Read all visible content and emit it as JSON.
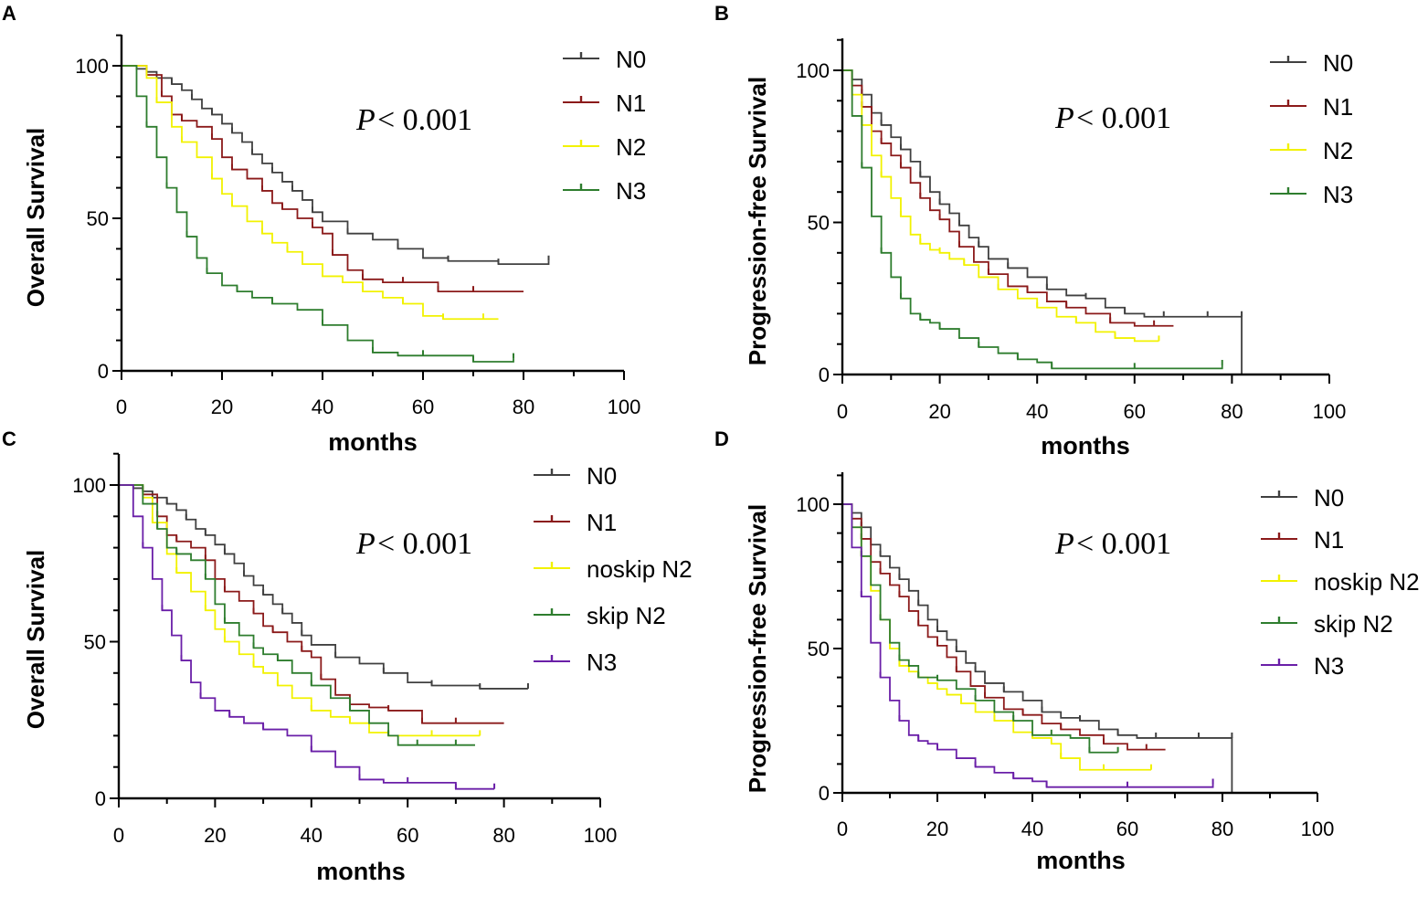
{
  "chart_data": [
    {
      "type": "line",
      "panel_label": "A",
      "ylabel": "Overall Survival",
      "xlabel": "months",
      "xlim": [
        0,
        100
      ],
      "ylim": [
        0,
        100
      ],
      "xticks": [
        "0",
        "20",
        "40",
        "60",
        "80",
        "100"
      ],
      "yticks": [
        "0",
        "50",
        "100"
      ],
      "pvalue": "< 0.001",
      "series": [
        {
          "name": "N0",
          "color": "#404040",
          "x": [
            0,
            3,
            5,
            7,
            10,
            12,
            14,
            16,
            18,
            20,
            22,
            24,
            26,
            28,
            30,
            32,
            34,
            36,
            38,
            40,
            45,
            50,
            55,
            60,
            65,
            70,
            75,
            80,
            85
          ],
          "y": [
            100,
            99,
            98,
            96,
            94,
            92,
            89,
            86,
            84,
            81,
            78,
            75,
            71,
            68,
            65,
            62,
            59,
            56,
            52,
            49,
            45,
            43,
            40,
            37,
            36,
            36,
            35,
            35,
            36
          ]
        },
        {
          "name": "N1",
          "color": "#8b1a1a",
          "x": [
            0,
            5,
            8,
            10,
            12,
            15,
            18,
            20,
            22,
            25,
            28,
            30,
            32,
            35,
            38,
            40,
            42,
            45,
            48,
            52,
            56,
            60,
            63,
            66,
            70,
            80
          ],
          "y": [
            100,
            97,
            90,
            84,
            82,
            80,
            76,
            70,
            66,
            63,
            59,
            55,
            53,
            50,
            47,
            45,
            38,
            33,
            30,
            29,
            29,
            29,
            26,
            26,
            26,
            26
          ]
        },
        {
          "name": "N2",
          "color": "#f2f200",
          "x": [
            0,
            5,
            7,
            10,
            12,
            15,
            18,
            20,
            22,
            25,
            28,
            30,
            33,
            36,
            40,
            44,
            48,
            52,
            56,
            60,
            64,
            68,
            72,
            75
          ],
          "y": [
            100,
            96,
            88,
            80,
            75,
            70,
            63,
            58,
            54,
            49,
            45,
            42,
            39,
            35,
            31,
            29,
            26,
            24,
            22,
            18,
            17,
            17,
            17,
            17
          ]
        },
        {
          "name": "N3",
          "color": "#2e7d2e",
          "x": [
            0,
            3,
            5,
            7,
            9,
            11,
            13,
            15,
            17,
            20,
            23,
            26,
            30,
            35,
            40,
            45,
            50,
            55,
            60,
            65,
            70,
            75,
            78
          ],
          "y": [
            100,
            90,
            80,
            70,
            60,
            52,
            44,
            37,
            32,
            28,
            26,
            24,
            22,
            20,
            15,
            10,
            6,
            5,
            5,
            5,
            3,
            3,
            4
          ]
        }
      ]
    },
    {
      "type": "line",
      "panel_label": "B",
      "ylabel": "Progression-free Survival",
      "xlabel": "months",
      "xlim": [
        0,
        100
      ],
      "ylim": [
        0,
        100
      ],
      "xticks": [
        "0",
        "20",
        "40",
        "60",
        "80",
        "100"
      ],
      "yticks": [
        "0",
        "50",
        "100"
      ],
      "pvalue": "< 0.001",
      "series": [
        {
          "name": "N0",
          "color": "#404040",
          "x": [
            0,
            2,
            4,
            6,
            8,
            10,
            12,
            14,
            16,
            18,
            20,
            22,
            24,
            26,
            28,
            30,
            34,
            38,
            42,
            46,
            50,
            54,
            58,
            62,
            66,
            70,
            75,
            80,
            82,
            82
          ],
          "y": [
            100,
            97,
            92,
            86,
            82,
            78,
            74,
            70,
            65,
            60,
            56,
            53,
            49,
            45,
            42,
            38,
            35,
            32,
            28,
            26,
            25,
            22,
            20,
            19,
            19,
            19,
            19,
            19,
            19,
            0
          ]
        },
        {
          "name": "N1",
          "color": "#8b1a1a",
          "x": [
            0,
            2,
            4,
            6,
            8,
            10,
            12,
            14,
            16,
            18,
            20,
            22,
            24,
            27,
            30,
            34,
            38,
            42,
            46,
            50,
            55,
            60,
            64,
            68
          ],
          "y": [
            100,
            95,
            88,
            80,
            76,
            72,
            68,
            63,
            58,
            54,
            51,
            47,
            42,
            37,
            33,
            29,
            27,
            24,
            22,
            20,
            17,
            16,
            16,
            16
          ]
        },
        {
          "name": "N2",
          "color": "#f2f200",
          "x": [
            0,
            2,
            4,
            6,
            8,
            10,
            12,
            14,
            16,
            18,
            20,
            22,
            25,
            28,
            32,
            36,
            40,
            44,
            48,
            52,
            56,
            60,
            65
          ],
          "y": [
            100,
            92,
            82,
            72,
            65,
            58,
            52,
            46,
            43,
            41,
            40,
            38,
            36,
            32,
            28,
            25,
            22,
            19,
            17,
            14,
            12,
            11,
            11
          ]
        },
        {
          "name": "N3",
          "color": "#2e7d2e",
          "x": [
            0,
            2,
            4,
            6,
            8,
            10,
            12,
            14,
            16,
            18,
            20,
            24,
            28,
            32,
            36,
            40,
            43,
            50,
            60,
            70,
            78
          ],
          "y": [
            100,
            85,
            68,
            52,
            40,
            32,
            25,
            20,
            18,
            17,
            15,
            12,
            9,
            7,
            5,
            4,
            2,
            2,
            2,
            2,
            3
          ]
        }
      ]
    },
    {
      "type": "line",
      "panel_label": "C",
      "ylabel": "Overall Survival",
      "xlabel": "months",
      "xlim": [
        0,
        100
      ],
      "ylim": [
        0,
        100
      ],
      "xticks": [
        "0",
        "20",
        "40",
        "60",
        "80",
        "100"
      ],
      "yticks": [
        "0",
        "50",
        "100"
      ],
      "pvalue": "< 0.001",
      "series": [
        {
          "name": "N0",
          "color": "#404040",
          "x": [
            0,
            3,
            5,
            7,
            10,
            12,
            14,
            16,
            18,
            20,
            22,
            24,
            26,
            28,
            30,
            32,
            34,
            36,
            38,
            40,
            45,
            50,
            55,
            60,
            65,
            70,
            75,
            80,
            85
          ],
          "y": [
            100,
            99,
            98,
            96,
            94,
            92,
            89,
            86,
            84,
            81,
            78,
            75,
            71,
            68,
            65,
            62,
            59,
            56,
            52,
            49,
            45,
            43,
            40,
            37,
            36,
            36,
            35,
            35,
            35
          ]
        },
        {
          "name": "N1",
          "color": "#8b1a1a",
          "x": [
            0,
            5,
            8,
            10,
            12,
            15,
            18,
            20,
            22,
            25,
            28,
            30,
            32,
            35,
            38,
            40,
            42,
            45,
            48,
            52,
            56,
            60,
            63,
            66,
            70,
            80
          ],
          "y": [
            100,
            97,
            90,
            84,
            82,
            80,
            76,
            70,
            66,
            63,
            59,
            55,
            53,
            50,
            47,
            45,
            38,
            33,
            30,
            29,
            28,
            28,
            24,
            24,
            24,
            24
          ]
        },
        {
          "name": "noskip N2",
          "color": "#f2f200",
          "x": [
            0,
            5,
            7,
            10,
            12,
            15,
            18,
            20,
            22,
            25,
            28,
            30,
            33,
            36,
            40,
            44,
            48,
            52,
            56,
            60,
            65,
            70,
            75
          ],
          "y": [
            100,
            96,
            88,
            78,
            72,
            66,
            60,
            54,
            50,
            46,
            42,
            40,
            36,
            32,
            28,
            26,
            24,
            21,
            20,
            20,
            20,
            20,
            20
          ]
        },
        {
          "name": "skip N2",
          "color": "#2e7d2e",
          "x": [
            0,
            5,
            8,
            10,
            12,
            15,
            18,
            20,
            22,
            25,
            28,
            30,
            33,
            36,
            40,
            44,
            48,
            52,
            56,
            58,
            62,
            66,
            70,
            74
          ],
          "y": [
            100,
            94,
            86,
            80,
            78,
            76,
            70,
            62,
            56,
            52,
            48,
            46,
            44,
            40,
            36,
            32,
            28,
            24,
            20,
            17,
            17,
            17,
            17,
            17
          ]
        },
        {
          "name": "N3",
          "color": "#6a1fa8",
          "x": [
            0,
            3,
            5,
            7,
            9,
            11,
            13,
            15,
            17,
            20,
            23,
            26,
            30,
            35,
            40,
            45,
            50,
            55,
            60,
            65,
            70,
            75,
            78
          ],
          "y": [
            100,
            90,
            80,
            70,
            60,
            52,
            44,
            37,
            32,
            28,
            26,
            24,
            22,
            20,
            15,
            10,
            6,
            5,
            5,
            5,
            3,
            3,
            3
          ]
        }
      ]
    },
    {
      "type": "line",
      "panel_label": "D",
      "ylabel": "Progression-free Survival",
      "xlabel": "months",
      "xlim": [
        0,
        100
      ],
      "ylim": [
        0,
        100
      ],
      "xticks": [
        "0",
        "20",
        "40",
        "60",
        "80",
        "100"
      ],
      "yticks": [
        "0",
        "50",
        "100"
      ],
      "pvalue": "< 0.001",
      "series": [
        {
          "name": "N0",
          "color": "#404040",
          "x": [
            0,
            2,
            4,
            6,
            8,
            10,
            12,
            14,
            16,
            18,
            20,
            22,
            24,
            26,
            28,
            30,
            34,
            38,
            42,
            46,
            50,
            54,
            58,
            62,
            66,
            70,
            75,
            80,
            82,
            82
          ],
          "y": [
            100,
            97,
            92,
            86,
            82,
            78,
            74,
            70,
            65,
            60,
            56,
            53,
            49,
            45,
            42,
            38,
            35,
            32,
            28,
            26,
            25,
            22,
            20,
            19,
            19,
            19,
            19,
            19,
            19,
            0
          ]
        },
        {
          "name": "N1",
          "color": "#8b1a1a",
          "x": [
            0,
            2,
            4,
            6,
            8,
            10,
            12,
            14,
            16,
            18,
            20,
            22,
            24,
            27,
            30,
            34,
            38,
            42,
            46,
            50,
            55,
            60,
            64,
            68
          ],
          "y": [
            100,
            95,
            88,
            80,
            76,
            72,
            68,
            63,
            58,
            54,
            51,
            47,
            42,
            37,
            33,
            29,
            27,
            24,
            22,
            20,
            17,
            15,
            15,
            15
          ]
        },
        {
          "name": "noskip N2",
          "color": "#f2f200",
          "x": [
            0,
            2,
            4,
            6,
            8,
            10,
            12,
            14,
            16,
            18,
            20,
            22,
            25,
            28,
            32,
            36,
            40,
            44,
            46,
            50,
            55,
            60,
            65
          ],
          "y": [
            100,
            92,
            82,
            70,
            60,
            50,
            44,
            42,
            40,
            38,
            36,
            34,
            31,
            28,
            25,
            21,
            19,
            17,
            12,
            8,
            8,
            8,
            8
          ]
        },
        {
          "name": "skip N2",
          "color": "#2e7d2e",
          "x": [
            0,
            2,
            4,
            6,
            8,
            10,
            12,
            14,
            16,
            18,
            20,
            24,
            28,
            32,
            36,
            40,
            44,
            48,
            52,
            55,
            58
          ],
          "y": [
            100,
            92,
            82,
            72,
            60,
            52,
            46,
            44,
            40,
            40,
            39,
            36,
            32,
            28,
            25,
            20,
            20,
            19,
            14,
            14,
            14
          ]
        },
        {
          "name": "N3",
          "color": "#6a1fa8",
          "x": [
            0,
            2,
            4,
            6,
            8,
            10,
            12,
            14,
            16,
            18,
            20,
            24,
            28,
            32,
            36,
            40,
            43,
            50,
            60,
            70,
            78
          ],
          "y": [
            100,
            85,
            68,
            52,
            40,
            32,
            25,
            20,
            18,
            17,
            15,
            12,
            9,
            7,
            5,
            4,
            2,
            2,
            2,
            2,
            3
          ]
        }
      ]
    }
  ]
}
